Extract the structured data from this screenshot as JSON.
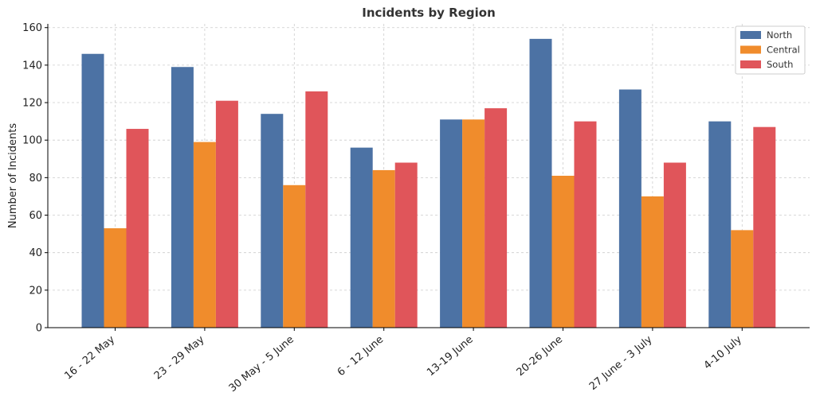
{
  "chart_data": {
    "type": "bar",
    "title": "Incidents by Region",
    "xlabel": "",
    "ylabel": "Number of Incidents",
    "ylim": [
      0,
      162
    ],
    "yticks": [
      0,
      20,
      40,
      60,
      80,
      100,
      120,
      140,
      160
    ],
    "grid": true,
    "legend_position": "top-right",
    "categories": [
      "16 - 22 May",
      "23 - 29 May",
      "30 May - 5 June",
      "6 - 12 June",
      "13-19 June",
      "20-26 June",
      "27 June - 3 July",
      "4-10 July"
    ],
    "series": [
      {
        "name": "North",
        "color": "#4c72a4",
        "values": [
          146,
          139,
          114,
          96,
          111,
          154,
          127,
          110
        ]
      },
      {
        "name": "Central",
        "color": "#f08c2c",
        "values": [
          53,
          99,
          76,
          84,
          111,
          81,
          70,
          52
        ]
      },
      {
        "name": "South",
        "color": "#e0555a",
        "values": [
          106,
          121,
          126,
          88,
          117,
          110,
          88,
          107
        ]
      }
    ]
  }
}
